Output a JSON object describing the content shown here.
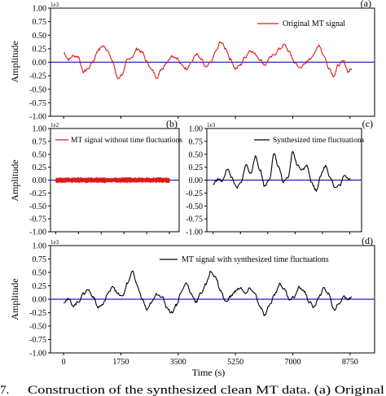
{
  "caption": {
    "number": "7.",
    "text": "Construction of the synthesized clean MT data. (a) Original"
  },
  "x_axis": {
    "label": "Time (s)",
    "ticks": [
      0,
      1750,
      3500,
      5250,
      7000,
      8750
    ]
  },
  "colors": {
    "zero_line": "#1f1fd0",
    "red_series": "#e01818",
    "black_series": "#000000"
  },
  "chart_data": [
    {
      "type": "line",
      "panel": "(a)",
      "ylabel": "Amplitude",
      "multiplier": "1e3",
      "ylim": [
        -1.0,
        1.0
      ],
      "yticks": [
        "1.00",
        "0.75",
        "0.50",
        "0.25",
        "0.00",
        "-0.25",
        "-0.50",
        "-0.75",
        "-1.00"
      ],
      "legend_position": "top-right",
      "series": [
        {
          "name": "Original MT signal",
          "color": "#e01818",
          "x": [
            0,
            150,
            300,
            450,
            600,
            750,
            900,
            1050,
            1200,
            1350,
            1500,
            1650,
            1800,
            1950,
            2100,
            2250,
            2400,
            2550,
            2700,
            2850,
            3000,
            3150,
            3300,
            3450,
            3600,
            3750,
            3900,
            4050,
            4200,
            4350,
            4500,
            4650,
            4800,
            4950,
            5100,
            5250,
            5400,
            5550,
            5700,
            5850,
            6000,
            6150,
            6300,
            6450,
            6600,
            6750,
            6900,
            7050,
            7200,
            7350,
            7500,
            7650,
            7800,
            7950,
            8100,
            8250,
            8400,
            8550,
            8700,
            8800
          ],
          "y": [
            0.18,
            0.05,
            0.12,
            0.1,
            -0.18,
            -0.12,
            0.02,
            0.22,
            0.3,
            0.22,
            0.0,
            -0.3,
            -0.22,
            0.05,
            0.1,
            0.25,
            0.18,
            0.0,
            -0.15,
            -0.28,
            -0.12,
            0.0,
            0.12,
            0.08,
            -0.05,
            -0.12,
            0.0,
            0.15,
            0.05,
            -0.1,
            0.0,
            0.2,
            0.38,
            0.25,
            0.05,
            -0.12,
            -0.05,
            0.1,
            0.22,
            0.15,
            0.05,
            -0.05,
            0.08,
            0.15,
            0.25,
            0.32,
            0.18,
            0.0,
            -0.1,
            -0.05,
            0.05,
            0.15,
            0.32,
            0.12,
            -0.1,
            -0.25,
            -0.05,
            0.02,
            -0.18,
            -0.12
          ]
        }
      ]
    },
    {
      "type": "line",
      "panel": "(b)",
      "ylabel": "Amplitude",
      "multiplier": "1e2",
      "ylim": [
        -1.0,
        1.0
      ],
      "yticks": [
        "1.00",
        "0.75",
        "0.50",
        "0.25",
        "0.00",
        "-0.25",
        "-0.50",
        "-0.75",
        "-1.00"
      ],
      "legend_position": "top-center",
      "series": [
        {
          "name": "MT signal without time fluctuations",
          "color": "#e01818",
          "amplitude": 0.06
        }
      ]
    },
    {
      "type": "line",
      "panel": "(c)",
      "multiplier": "1e3",
      "ylim": [
        -1.0,
        1.0
      ],
      "yticks": [
        "1.00",
        "0.75",
        "0.50",
        "0.25",
        "0.00",
        "-0.25",
        "-0.50",
        "-0.75",
        "-1.00"
      ],
      "legend_position": "top-center",
      "series": [
        {
          "name": "Synthesized time fluctuations",
          "color": "#000000",
          "x": [
            0,
            300,
            600,
            900,
            1200,
            1500,
            1800,
            2100,
            2400,
            2700,
            3000,
            3300,
            3600,
            3900,
            4200,
            4500,
            4800,
            5100,
            5400,
            5700,
            6000,
            6300,
            6600,
            6900,
            7200,
            7500,
            7800,
            8100,
            8400,
            8800
          ],
          "y": [
            -0.08,
            0.02,
            -0.02,
            0.22,
            0.05,
            -0.15,
            -0.05,
            0.3,
            0.12,
            0.45,
            0.2,
            -0.12,
            0.02,
            0.5,
            0.25,
            -0.05,
            0.05,
            0.55,
            0.28,
            0.2,
            0.3,
            -0.05,
            -0.2,
            0.1,
            0.28,
            0.05,
            -0.15,
            -0.1,
            0.08,
            0.02
          ]
        }
      ]
    },
    {
      "type": "line",
      "panel": "(d)",
      "ylabel": "Amplitude",
      "multiplier": "1e3",
      "ylim": [
        -1.0,
        1.0
      ],
      "yticks": [
        "1.00",
        "0.75",
        "0.50",
        "0.25",
        "0.00",
        "-0.25",
        "-0.50",
        "-0.75",
        "-1.00"
      ],
      "legend_position": "top-right",
      "series": [
        {
          "name": "MT signal with synthesized time fluctuations",
          "color": "#000000",
          "x": [
            0,
            150,
            300,
            450,
            600,
            750,
            900,
            1050,
            1200,
            1350,
            1500,
            1650,
            1800,
            1950,
            2100,
            2250,
            2400,
            2550,
            2700,
            2850,
            3000,
            3150,
            3300,
            3450,
            3600,
            3750,
            3900,
            4050,
            4200,
            4350,
            4500,
            4650,
            4800,
            4950,
            5100,
            5250,
            5400,
            5550,
            5700,
            5850,
            6000,
            6150,
            6300,
            6450,
            6600,
            6750,
            6900,
            7050,
            7200,
            7350,
            7500,
            7650,
            7800,
            7950,
            8100,
            8250,
            8400,
            8550,
            8700,
            8800
          ],
          "y": [
            -0.05,
            0.0,
            -0.12,
            -0.05,
            0.1,
            0.18,
            0.05,
            -0.15,
            -0.1,
            0.1,
            0.25,
            0.1,
            0.05,
            0.3,
            0.52,
            0.25,
            0.0,
            -0.2,
            -0.05,
            0.1,
            0.05,
            -0.15,
            -0.25,
            -0.1,
            0.15,
            0.3,
            0.1,
            -0.05,
            0.12,
            0.28,
            0.52,
            0.4,
            0.15,
            -0.05,
            0.05,
            0.15,
            0.22,
            0.1,
            0.2,
            0.1,
            -0.15,
            -0.3,
            -0.1,
            0.1,
            0.28,
            0.18,
            0.0,
            0.05,
            0.22,
            0.15,
            -0.05,
            -0.15,
            0.05,
            0.2,
            0.1,
            -0.2,
            -0.1,
            0.05,
            0.0,
            0.05
          ]
        }
      ]
    }
  ]
}
